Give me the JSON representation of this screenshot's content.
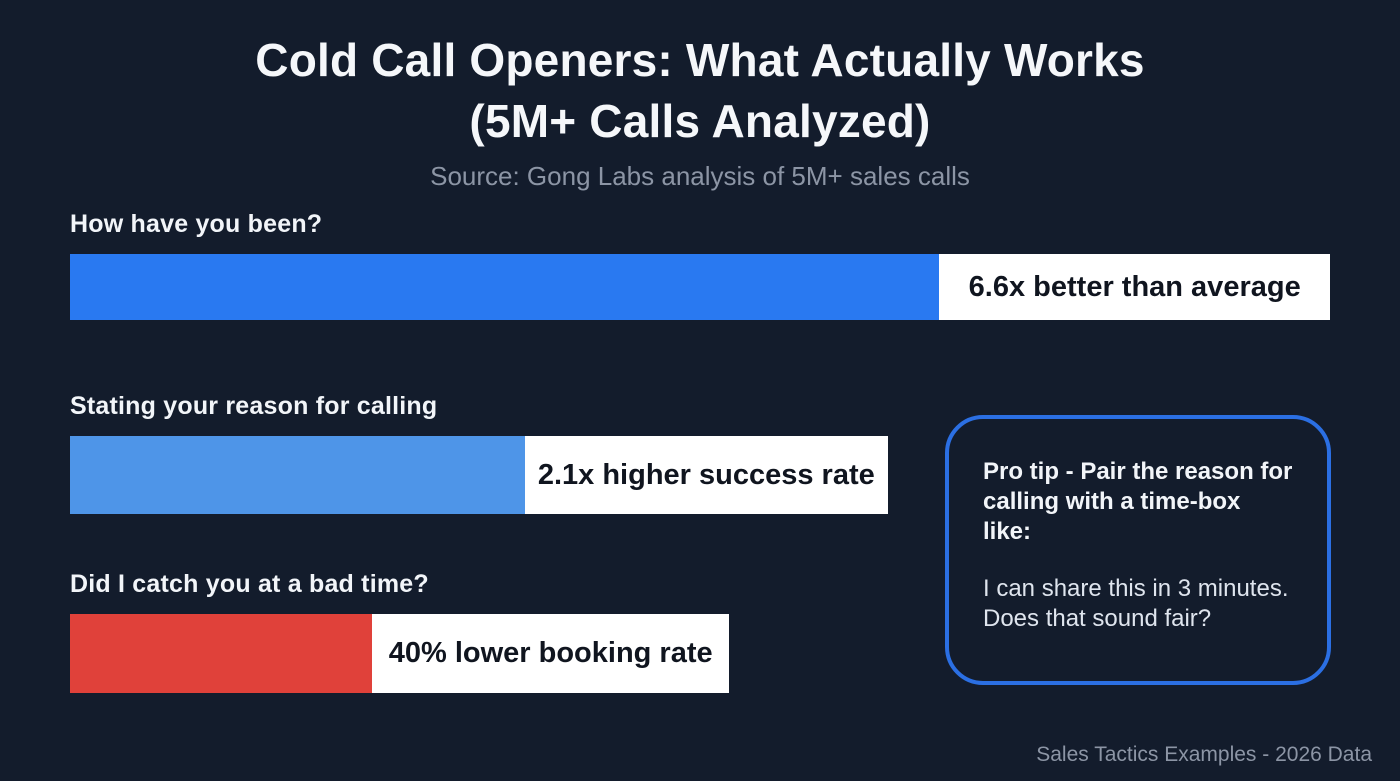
{
  "title": {
    "line1": "Cold Call Openers: What Actually Works",
    "line2": "(5M+ Calls Analyzed)",
    "full": "Cold Call Openers: What Actually Works (5M+ Calls Analyzed)"
  },
  "subtitle": "Source: Gong Labs analysis of 5M+ sales calls",
  "footer": "Sales Tactics Examples - 2026 Data",
  "colors": {
    "background": "#131c2c",
    "bar_positive_strong": "#2979f1",
    "bar_positive_light": "#4e95e8",
    "bar_negative": "#e0413a",
    "accent_border": "#2b6fe3",
    "label_box": "#ffffff",
    "label_text": "#10151f",
    "muted_text": "#8c95a5"
  },
  "chart_data": {
    "type": "bar",
    "orientation": "horizontal",
    "title": "Cold Call Openers: What Actually Works (5M+ Calls Analyzed)",
    "source": "Source: Gong Labs analysis of 5M+ sales calls",
    "legend": "none",
    "grid": false,
    "categories": [
      "How have you been?",
      "Stating your reason for calling",
      "Did I catch you at a bad time?"
    ],
    "values_text": [
      "6.6x better than average",
      "2.1x higher success rate",
      "40% lower booking rate"
    ],
    "bars": [
      {
        "category": "How have you been?",
        "value_label": "6.6x better than average",
        "multiplier": 6.6,
        "sentiment": "positive",
        "color": "#2979f1",
        "bar_width": "69%",
        "box_width": "31%"
      },
      {
        "category": "Stating your reason for calling",
        "value_label": "2.1x higher success rate",
        "multiplier": 2.1,
        "sentiment": "positive",
        "color": "#4e95e8",
        "bar_width": "36.1%",
        "box_width": "28.8%"
      },
      {
        "category": "Did I catch you at a bad time?",
        "value_label": "40% lower booking rate",
        "multiplier": -0.4,
        "sentiment": "negative",
        "color": "#e0413a",
        "bar_width": "24%",
        "box_width": "28.3%"
      }
    ]
  },
  "pro_tip": {
    "heading": "Pro tip - Pair the reason for calling with a time-box like:",
    "body": "I can share this in 3 minutes. Does that sound fair?"
  }
}
